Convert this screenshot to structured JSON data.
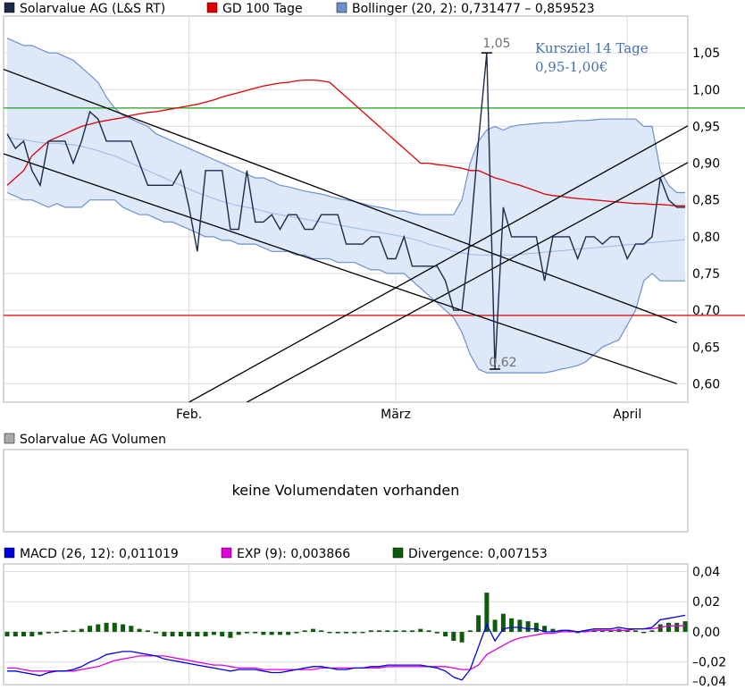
{
  "chart_data": [
    {
      "type": "line",
      "panel": "price",
      "legend": [
        {
          "label": "Solarvalue AG (L&S RT)",
          "color": "#1c2a4a"
        },
        {
          "label": "GD 100 Tage",
          "color": "#e00000"
        },
        {
          "label": "Bollinger (20, 2): 0,731477 – 0,859523",
          "color": "#6e8fd0"
        }
      ],
      "x_labels": [
        {
          "label": "Feb.",
          "index": 22
        },
        {
          "label": "März",
          "index": 47
        },
        {
          "label": "April",
          "index": 75
        }
      ],
      "n_points": 83,
      "ylim": [
        0.575,
        1.1
      ],
      "yticks": [
        {
          "value": 0.6,
          "label": "0,60"
        },
        {
          "value": 0.65,
          "label": "0,65"
        },
        {
          "value": 0.7,
          "label": "0,70"
        },
        {
          "value": 0.75,
          "label": "0,75"
        },
        {
          "value": 0.8,
          "label": "0,80"
        },
        {
          "value": 0.85,
          "label": "0,85"
        },
        {
          "value": 0.9,
          "label": "0,90"
        },
        {
          "value": 0.95,
          "label": "0,95"
        },
        {
          "value": 1.0,
          "label": "1,00"
        },
        {
          "value": 1.05,
          "label": "1,05"
        }
      ],
      "grid": true,
      "annotations": {
        "high_label": "1,05",
        "low_label": "0,62",
        "target_line1": "Kursziel 14 Tage",
        "target_line2": "0,95-1,00€"
      },
      "series": [
        {
          "name": "Solarvalue AG (L&S RT)",
          "color": "#1c2a4a",
          "values": [
            0.94,
            0.92,
            0.93,
            0.89,
            0.87,
            0.93,
            0.93,
            0.93,
            0.9,
            0.93,
            0.97,
            0.96,
            0.93,
            0.93,
            0.93,
            0.93,
            0.9,
            0.87,
            0.87,
            0.87,
            0.87,
            0.89,
            0.84,
            0.78,
            0.89,
            0.89,
            0.89,
            0.81,
            0.81,
            0.89,
            0.82,
            0.82,
            0.83,
            0.81,
            0.83,
            0.83,
            0.81,
            0.81,
            0.83,
            0.83,
            0.83,
            0.79,
            0.79,
            0.79,
            0.8,
            0.8,
            0.77,
            0.77,
            0.8,
            0.76,
            0.76,
            0.76,
            0.76,
            0.74,
            0.7,
            0.7,
            0.8,
            0.93,
            1.05,
            0.62,
            0.84,
            0.8,
            0.8,
            0.8,
            0.8,
            0.74,
            0.8,
            0.8,
            0.8,
            0.77,
            0.8,
            0.8,
            0.79,
            0.8,
            0.8,
            0.77,
            0.79,
            0.79,
            0.8,
            0.88,
            0.85,
            0.84,
            0.84
          ]
        },
        {
          "name": "GD 100 Tage",
          "color": "#e00000",
          "values": [
            0.87,
            0.88,
            0.89,
            0.91,
            0.92,
            0.93,
            0.935,
            0.94,
            0.945,
            0.95,
            0.953,
            0.956,
            0.958,
            0.96,
            0.962,
            0.965,
            0.967,
            0.969,
            0.97,
            0.972,
            0.974,
            0.976,
            0.978,
            0.98,
            0.983,
            0.986,
            0.99,
            0.993,
            0.996,
            0.999,
            1.002,
            1.005,
            1.007,
            1.009,
            1.01,
            1.012,
            1.013,
            1.013,
            1.012,
            1.01,
            1.0,
            0.99,
            0.98,
            0.97,
            0.96,
            0.95,
            0.94,
            0.93,
            0.92,
            0.91,
            0.9,
            0.9,
            0.898,
            0.897,
            0.895,
            0.893,
            0.89,
            0.89,
            0.885,
            0.88,
            0.877,
            0.873,
            0.87,
            0.866,
            0.862,
            0.858,
            0.856,
            0.855,
            0.853,
            0.852,
            0.851,
            0.85,
            0.849,
            0.848,
            0.847,
            0.846,
            0.845,
            0.845,
            0.844,
            0.844,
            0.843,
            0.842,
            0.842
          ]
        },
        {
          "name": "Bollinger upper",
          "color": "#6e8fd0",
          "values": [
            1.07,
            1.065,
            1.06,
            1.06,
            1.055,
            1.05,
            1.05,
            1.045,
            1.04,
            1.03,
            1.02,
            1.01,
            0.99,
            0.975,
            0.965,
            0.96,
            0.955,
            0.95,
            0.94,
            0.935,
            0.93,
            0.925,
            0.92,
            0.915,
            0.91,
            0.905,
            0.9,
            0.895,
            0.89,
            0.885,
            0.88,
            0.88,
            0.875,
            0.87,
            0.868,
            0.865,
            0.862,
            0.86,
            0.858,
            0.855,
            0.852,
            0.85,
            0.848,
            0.845,
            0.842,
            0.84,
            0.838,
            0.835,
            0.835,
            0.832,
            0.83,
            0.83,
            0.83,
            0.83,
            0.83,
            0.85,
            0.9,
            0.93,
            0.945,
            0.95,
            0.945,
            0.95,
            0.952,
            0.953,
            0.954,
            0.955,
            0.955,
            0.956,
            0.957,
            0.958,
            0.958,
            0.959,
            0.96,
            0.96,
            0.96,
            0.96,
            0.96,
            0.95,
            0.95,
            0.89,
            0.87,
            0.86,
            0.86
          ]
        },
        {
          "name": "Bollinger middle",
          "color": "#9cb8e8",
          "values": [
            0.935,
            0.933,
            0.932,
            0.93,
            0.928,
            0.927,
            0.927,
            0.926,
            0.925,
            0.923,
            0.92,
            0.917,
            0.913,
            0.91,
            0.905,
            0.9,
            0.895,
            0.89,
            0.885,
            0.88,
            0.875,
            0.87,
            0.865,
            0.86,
            0.856,
            0.852,
            0.848,
            0.845,
            0.842,
            0.84,
            0.838,
            0.835,
            0.832,
            0.83,
            0.828,
            0.826,
            0.824,
            0.822,
            0.82,
            0.818,
            0.816,
            0.814,
            0.812,
            0.81,
            0.808,
            0.806,
            0.804,
            0.802,
            0.8,
            0.797,
            0.794,
            0.79,
            0.787,
            0.784,
            0.78,
            0.778,
            0.776,
            0.775,
            0.775,
            0.775,
            0.775,
            0.775,
            0.776,
            0.777,
            0.778,
            0.779,
            0.78,
            0.781,
            0.782,
            0.783,
            0.784,
            0.785,
            0.786,
            0.787,
            0.788,
            0.789,
            0.79,
            0.791,
            0.792,
            0.793,
            0.794,
            0.795,
            0.796
          ]
        },
        {
          "name": "Bollinger lower",
          "color": "#6e8fd0",
          "values": [
            0.86,
            0.855,
            0.85,
            0.85,
            0.845,
            0.84,
            0.845,
            0.84,
            0.84,
            0.84,
            0.85,
            0.85,
            0.85,
            0.85,
            0.84,
            0.835,
            0.83,
            0.83,
            0.825,
            0.82,
            0.82,
            0.815,
            0.81,
            0.805,
            0.8,
            0.8,
            0.795,
            0.795,
            0.79,
            0.79,
            0.79,
            0.785,
            0.78,
            0.78,
            0.78,
            0.775,
            0.775,
            0.77,
            0.77,
            0.77,
            0.765,
            0.765,
            0.765,
            0.76,
            0.755,
            0.755,
            0.75,
            0.75,
            0.75,
            0.74,
            0.73,
            0.72,
            0.71,
            0.7,
            0.69,
            0.67,
            0.64,
            0.62,
            0.615,
            0.615,
            0.615,
            0.615,
            0.615,
            0.615,
            0.615,
            0.615,
            0.617,
            0.62,
            0.622,
            0.625,
            0.63,
            0.64,
            0.65,
            0.655,
            0.66,
            0.68,
            0.7,
            0.74,
            0.75,
            0.74,
            0.74,
            0.74,
            0.74
          ]
        }
      ],
      "hlines": [
        {
          "value": 0.975,
          "color": "#18a018"
        },
        {
          "value": 0.693,
          "color": "#e00000"
        }
      ],
      "trendlines": [
        {
          "from": [
            -1,
            1.03
          ],
          "to": [
            81,
            0.683
          ],
          "color": "#000000"
        },
        {
          "from": [
            -1,
            0.915
          ],
          "to": [
            81,
            0.6
          ],
          "color": "#000000"
        },
        {
          "from": [
            22,
            0.575
          ],
          "to": [
            83,
            0.955
          ],
          "color": "#000000"
        },
        {
          "from": [
            29,
            0.575
          ],
          "to": [
            83,
            0.905
          ],
          "color": "#000000"
        }
      ]
    },
    {
      "type": "table",
      "panel": "volume",
      "legend": [
        {
          "label": "Solarvalue AG Volumen",
          "color": "#aaaaaa"
        }
      ],
      "message": "keine Volumendaten vorhanden"
    },
    {
      "type": "bar",
      "panel": "macd",
      "legend": [
        {
          "label": "MACD (26, 12): 0,011019",
          "color": "#0000e0"
        },
        {
          "label": "EXP (9): 0,003866",
          "color": "#e000e0"
        },
        {
          "label": "Divergence: 0,007153",
          "color": "#0d5c0d"
        }
      ],
      "ylim": [
        -0.035,
        0.045
      ],
      "yticks": [
        {
          "value": 0.04,
          "label": "0,04"
        },
        {
          "value": 0.02,
          "label": "0,02"
        },
        {
          "value": 0.0,
          "label": "0,00"
        },
        {
          "value": -0.02,
          "label": "–0,02"
        },
        {
          "value": -0.04,
          "label": "–0,04"
        }
      ],
      "grid": true,
      "series": [
        {
          "name": "MACD (26, 12)",
          "color": "#0000e0",
          "values": [
            -0.026,
            -0.026,
            -0.027,
            -0.028,
            -0.029,
            -0.027,
            -0.026,
            -0.026,
            -0.025,
            -0.023,
            -0.02,
            -0.018,
            -0.015,
            -0.014,
            -0.013,
            -0.013,
            -0.014,
            -0.015,
            -0.016,
            -0.018,
            -0.019,
            -0.02,
            -0.021,
            -0.022,
            -0.023,
            -0.024,
            -0.025,
            -0.026,
            -0.025,
            -0.025,
            -0.025,
            -0.026,
            -0.027,
            -0.027,
            -0.026,
            -0.025,
            -0.024,
            -0.023,
            -0.023,
            -0.024,
            -0.025,
            -0.025,
            -0.024,
            -0.024,
            -0.023,
            -0.023,
            -0.022,
            -0.022,
            -0.022,
            -0.022,
            -0.022,
            -0.023,
            -0.024,
            -0.026,
            -0.03,
            -0.032,
            -0.025,
            -0.01,
            0.005,
            -0.006,
            0.002,
            0.003,
            0.003,
            0.002,
            0.002,
            0.0,
            0.0,
            0.001,
            0.001,
            0.0,
            0.001,
            0.002,
            0.002,
            0.002,
            0.003,
            0.002,
            0.002,
            0.002,
            0.003,
            0.008,
            0.009,
            0.01,
            0.011
          ]
        },
        {
          "name": "EXP (9)",
          "color": "#e000e0",
          "values": [
            -0.024,
            -0.024,
            -0.025,
            -0.026,
            -0.026,
            -0.026,
            -0.026,
            -0.026,
            -0.026,
            -0.025,
            -0.024,
            -0.023,
            -0.021,
            -0.019,
            -0.018,
            -0.017,
            -0.016,
            -0.016,
            -0.016,
            -0.016,
            -0.017,
            -0.018,
            -0.019,
            -0.02,
            -0.021,
            -0.022,
            -0.022,
            -0.023,
            -0.024,
            -0.024,
            -0.024,
            -0.025,
            -0.025,
            -0.025,
            -0.025,
            -0.025,
            -0.025,
            -0.025,
            -0.024,
            -0.024,
            -0.024,
            -0.024,
            -0.024,
            -0.024,
            -0.024,
            -0.024,
            -0.023,
            -0.023,
            -0.023,
            -0.023,
            -0.023,
            -0.023,
            -0.023,
            -0.023,
            -0.024,
            -0.025,
            -0.025,
            -0.022,
            -0.015,
            -0.012,
            -0.009,
            -0.006,
            -0.004,
            -0.003,
            -0.002,
            -0.001,
            -0.001,
            0.0,
            0.0,
            0.0,
            0.0,
            0.001,
            0.001,
            0.001,
            0.001,
            0.001,
            0.002,
            0.002,
            0.002,
            0.003,
            0.004,
            0.004,
            0.004
          ]
        }
      ],
      "divergence": [
        -0.003,
        -0.003,
        -0.003,
        -0.003,
        -0.002,
        -0.001,
        0.0,
        0.001,
        0.001,
        0.002,
        0.004,
        0.005,
        0.006,
        0.006,
        0.005,
        0.004,
        0.002,
        0.001,
        -0.001,
        -0.003,
        -0.003,
        -0.003,
        -0.003,
        -0.003,
        -0.003,
        -0.002,
        -0.003,
        -0.004,
        -0.002,
        -0.001,
        -0.001,
        -0.002,
        -0.002,
        -0.002,
        -0.002,
        -0.001,
        0.001,
        0.002,
        0.001,
        0.0,
        -0.001,
        -0.001,
        -0.001,
        0.0,
        0.001,
        0.001,
        0.001,
        0.001,
        0.001,
        0.001,
        0.002,
        0.001,
        -0.001,
        -0.003,
        -0.006,
        -0.007,
        0.001,
        0.011,
        0.026,
        0.008,
        0.012,
        0.009,
        0.008,
        0.007,
        0.006,
        0.004,
        0.002,
        0.001,
        0.001,
        0.0,
        0.001,
        0.001,
        0.001,
        0.001,
        0.002,
        0.001,
        0.001,
        0.0,
        0.001,
        0.005,
        0.006,
        0.006,
        0.007
      ]
    }
  ]
}
